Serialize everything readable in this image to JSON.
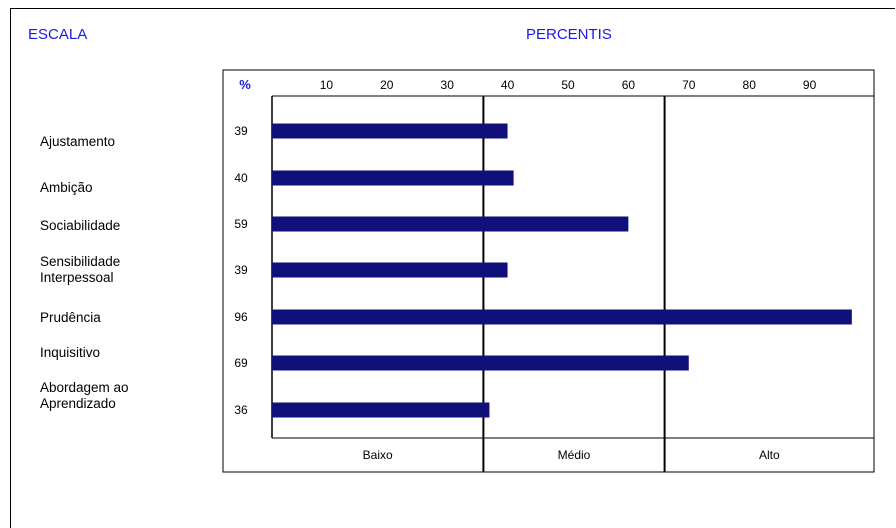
{
  "header": {
    "scale_label": "ESCALA",
    "percentile_label": "PERCENTIS"
  },
  "chart_data": {
    "type": "bar",
    "orientation": "horizontal",
    "title": "PERCENTIS",
    "categories": [
      "Ajustamento",
      "Ambição",
      "Sociabilidade",
      "Sensibilidade\nInterpessoal",
      "Prudência",
      "Inquisitivo",
      "Abordagem ao\nAprendizado"
    ],
    "values": [
      39,
      40,
      59,
      39,
      96,
      69,
      36
    ],
    "value_labels": [
      "39",
      "40",
      "59",
      "39",
      "96",
      "69",
      "36"
    ],
    "value_column_header": "%",
    "xlim": [
      0,
      100
    ],
    "x_ticks": [
      "10",
      "20",
      "30",
      "40",
      "50",
      "60",
      "70",
      "80",
      "90"
    ],
    "bands": [
      {
        "label": "Baixo",
        "from": 0,
        "to": 35
      },
      {
        "label": "Médio",
        "from": 35,
        "to": 65
      },
      {
        "label": "Alto",
        "from": 65,
        "to": 100
      }
    ],
    "bar_color": "#10107a",
    "grid": false
  }
}
